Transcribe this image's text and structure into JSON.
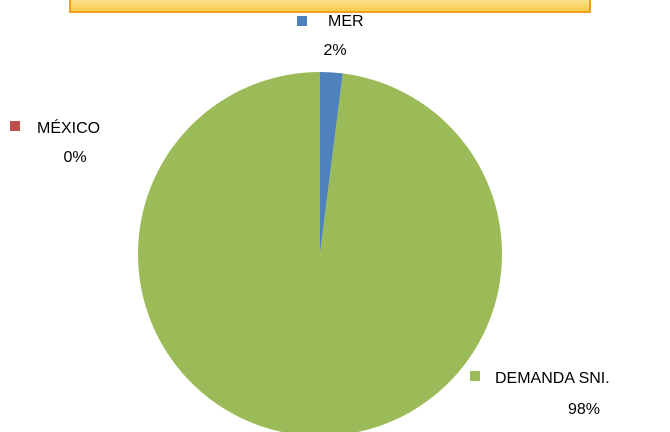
{
  "chart_data": {
    "type": "pie",
    "categories": [
      "MER",
      "DEMANDA SNI.",
      "MÉXICO"
    ],
    "values": [
      2,
      98,
      0
    ],
    "value_labels": [
      "2%",
      "98%",
      "0%"
    ],
    "colors": [
      "#4f81bd",
      "#9bbb59",
      "#c0504d"
    ]
  }
}
